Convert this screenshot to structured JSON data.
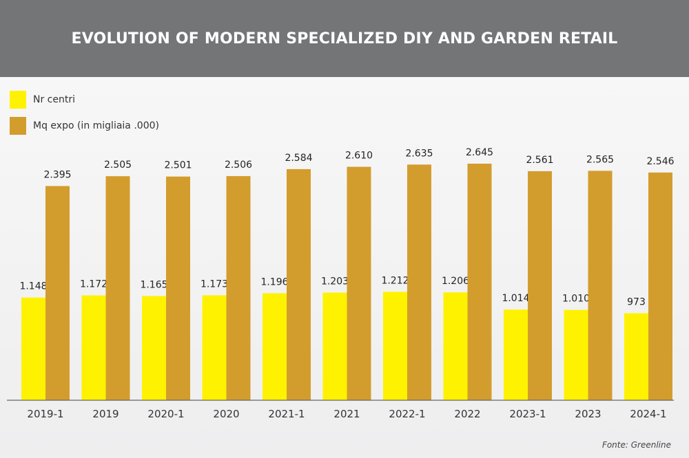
{
  "chart_data": {
    "type": "bar",
    "title": "EVOLUTION OF MODERN SPECIALIZED DIY AND GARDEN RETAIL",
    "categories": [
      "2019-1",
      "2019",
      "2020-1",
      "2020",
      "2021-1",
      "2021",
      "2022-1",
      "2022",
      "2023-1",
      "2023",
      "2024-1"
    ],
    "series": [
      {
        "name": "Nr centri",
        "color": "#fff200",
        "values": [
          1148,
          1172,
          1165,
          1173,
          1196,
          1203,
          1212,
          1206,
          1014,
          1010,
          973
        ],
        "labels": [
          "1.148",
          "1.172",
          "1.165",
          "1.173",
          "1.196",
          "1.203",
          "1.212",
          "1.206",
          "1.014",
          "1.010",
          "973"
        ]
      },
      {
        "name": "Mq expo (in migliaia .000)",
        "color": "#d39d2d",
        "values": [
          2395,
          2505,
          2501,
          2506,
          2584,
          2610,
          2635,
          2645,
          2561,
          2565,
          2546
        ],
        "labels": [
          "2.395",
          "2.505",
          "2.501",
          "2.506",
          "2.584",
          "2.610",
          "2.635",
          "2.645",
          "2.561",
          "2.565",
          "2.546"
        ]
      }
    ],
    "ylim": [
      0,
      2800
    ],
    "legend_position": "top-left",
    "grid": false
  },
  "header": {
    "title": "EVOLUTION OF MODERN SPECIALIZED DIY AND GARDEN RETAIL"
  },
  "legend": {
    "items": [
      "Nr centri",
      "Mq expo (in migliaia .000)"
    ]
  },
  "source": "Fonte: Greenline",
  "colors": {
    "header_bg": "#747577",
    "series_1": "#fff200",
    "series_2": "#d39d2d"
  }
}
